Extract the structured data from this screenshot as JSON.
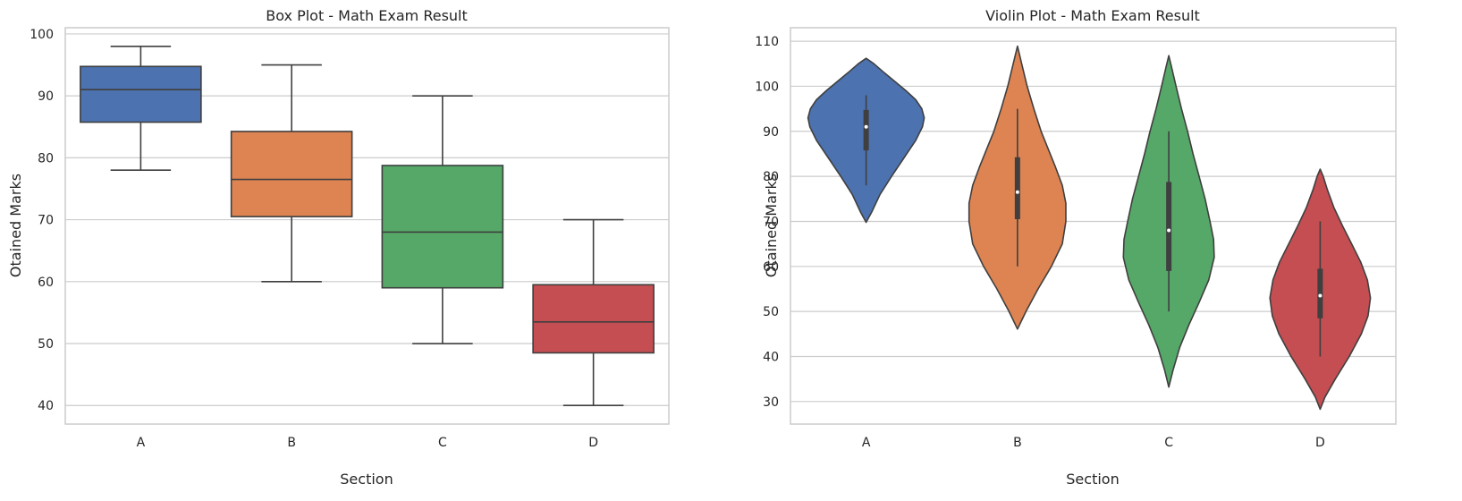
{
  "chart_data": [
    {
      "type": "box",
      "title": "Box Plot - Math Exam Result",
      "xlabel": "Section",
      "ylabel": "Otained Marks",
      "categories": [
        "A",
        "B",
        "C",
        "D"
      ],
      "colors": [
        "#4c72b0",
        "#dd8452",
        "#55a868",
        "#c44e52"
      ],
      "yticks": [
        40,
        50,
        60,
        70,
        80,
        90,
        100
      ],
      "ylim": [
        37,
        101
      ],
      "grid": true,
      "boxes": [
        {
          "min": 78,
          "q1": 85.75,
          "median": 91,
          "q3": 94.75,
          "max": 98
        },
        {
          "min": 60,
          "q1": 70.5,
          "median": 76.5,
          "q3": 84.25,
          "max": 95
        },
        {
          "min": 50,
          "q1": 59,
          "median": 68,
          "q3": 78.75,
          "max": 90
        },
        {
          "min": 40,
          "q1": 48.5,
          "median": 53.5,
          "q3": 59.5,
          "max": 70
        }
      ]
    },
    {
      "type": "violin",
      "title": "Violin Plot - Math Exam Result",
      "xlabel": "Section",
      "ylabel": "Otained Marks",
      "categories": [
        "A",
        "B",
        "C",
        "D"
      ],
      "colors": [
        "#4c72b0",
        "#dd8452",
        "#55a868",
        "#c44e52"
      ],
      "yticks": [
        30,
        40,
        50,
        60,
        70,
        80,
        90,
        100,
        110
      ],
      "ylim": [
        25,
        113
      ],
      "grid": true,
      "violins": [
        {
          "ymin": 69.8,
          "ymax": 106.2,
          "profile": [
            [
              69.8,
              0
            ],
            [
              72,
              0.09
            ],
            [
              76,
              0.23
            ],
            [
              80,
              0.42
            ],
            [
              84,
              0.62
            ],
            [
              88,
              0.82
            ],
            [
              91,
              0.93
            ],
            [
              93,
              0.96
            ],
            [
              95,
              0.92
            ],
            [
              97,
              0.82
            ],
            [
              99,
              0.66
            ],
            [
              101,
              0.48
            ],
            [
              103,
              0.3
            ],
            [
              105,
              0.13
            ],
            [
              106.2,
              0
            ]
          ],
          "min": 78,
          "q1": 85.75,
          "median": 91,
          "q3": 94.75,
          "max": 98
        },
        {
          "ymin": 46.1,
          "ymax": 108.9,
          "profile": [
            [
              46.1,
              0
            ],
            [
              50,
              0.14
            ],
            [
              55,
              0.34
            ],
            [
              60,
              0.56
            ],
            [
              65,
              0.74
            ],
            [
              70,
              0.8
            ],
            [
              74,
              0.8
            ],
            [
              78,
              0.74
            ],
            [
              82,
              0.63
            ],
            [
              86,
              0.51
            ],
            [
              90,
              0.39
            ],
            [
              95,
              0.27
            ],
            [
              100,
              0.16
            ],
            [
              105,
              0.07
            ],
            [
              108.9,
              0
            ]
          ],
          "min": 60,
          "q1": 70.5,
          "median": 76.5,
          "q3": 84.25,
          "max": 95
        },
        {
          "ymin": 33.2,
          "ymax": 106.8,
          "profile": [
            [
              33.2,
              0
            ],
            [
              37,
              0.07
            ],
            [
              42,
              0.18
            ],
            [
              47,
              0.33
            ],
            [
              52,
              0.5
            ],
            [
              57,
              0.66
            ],
            [
              62,
              0.75
            ],
            [
              66,
              0.74
            ],
            [
              70,
              0.68
            ],
            [
              75,
              0.6
            ],
            [
              80,
              0.5
            ],
            [
              85,
              0.4
            ],
            [
              90,
              0.31
            ],
            [
              95,
              0.21
            ],
            [
              100,
              0.12
            ],
            [
              104,
              0.05
            ],
            [
              106.8,
              0
            ]
          ],
          "min": 50,
          "q1": 59,
          "median": 68,
          "q3": 78.75,
          "max": 90
        },
        {
          "ymin": 28.3,
          "ymax": 81.6,
          "profile": [
            [
              28.3,
              0
            ],
            [
              31,
              0.08
            ],
            [
              35,
              0.25
            ],
            [
              40,
              0.48
            ],
            [
              45,
              0.68
            ],
            [
              49,
              0.79
            ],
            [
              53,
              0.83
            ],
            [
              57,
              0.78
            ],
            [
              61,
              0.67
            ],
            [
              65,
              0.52
            ],
            [
              69,
              0.37
            ],
            [
              73,
              0.23
            ],
            [
              77,
              0.12
            ],
            [
              80,
              0.05
            ],
            [
              81.6,
              0
            ]
          ],
          "min": 40,
          "q1": 48.5,
          "median": 53.5,
          "q3": 59.5,
          "max": 70
        }
      ]
    }
  ]
}
